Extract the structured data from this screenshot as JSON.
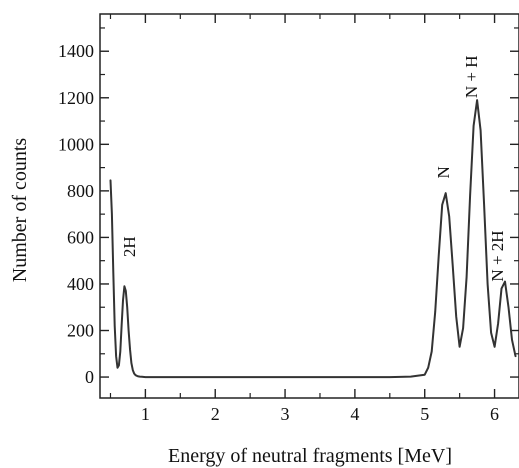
{
  "chart_data": {
    "type": "line",
    "title": "",
    "xlabel": "Energy of neutral fragments [MeV]",
    "ylabel": "Number of counts",
    "xlim": [
      0.35,
      6.35
    ],
    "ylim": [
      -90,
      1560
    ],
    "x_ticks": [
      1,
      2,
      3,
      4,
      5,
      6
    ],
    "x_tick_labels": [
      "1",
      "2",
      "3",
      "4",
      "5",
      "6"
    ],
    "y_ticks": [
      0,
      200,
      400,
      600,
      800,
      1000,
      1200,
      1400
    ],
    "y_tick_labels": [
      "0",
      "200",
      "400",
      "600",
      "800",
      "1000",
      "1200",
      "1400"
    ],
    "grid": false,
    "legend": "none",
    "line_color": "#333333",
    "series": [
      {
        "x": [
          0.5,
          0.52,
          0.54,
          0.56,
          0.58,
          0.6,
          0.62,
          0.64,
          0.66,
          0.68,
          0.7,
          0.72,
          0.74,
          0.76,
          0.78,
          0.8,
          0.82,
          0.84,
          0.86,
          0.88,
          0.9,
          0.92,
          0.95,
          1.0,
          1.1,
          1.2,
          1.3,
          1.5,
          1.8,
          2.0,
          2.5,
          3.0,
          3.5,
          4.0,
          4.5,
          4.8,
          5.0,
          5.05,
          5.1,
          5.15,
          5.2,
          5.25,
          5.3,
          5.35,
          5.4,
          5.45,
          5.5,
          5.55,
          5.6,
          5.65,
          5.7,
          5.75,
          5.8,
          5.85,
          5.9,
          5.95,
          6.0,
          6.05,
          6.1,
          6.15,
          6.2,
          6.25,
          6.3
        ],
        "y": [
          845,
          700,
          450,
          220,
          90,
          40,
          50,
          110,
          220,
          330,
          390,
          370,
          300,
          200,
          120,
          60,
          30,
          15,
          8,
          5,
          3,
          2,
          1,
          0,
          0,
          0,
          0,
          0,
          0,
          0,
          0,
          0,
          0,
          0,
          0,
          2,
          10,
          40,
          110,
          280,
          520,
          740,
          790,
          690,
          480,
          260,
          130,
          210,
          430,
          780,
          1080,
          1190,
          1060,
          740,
          400,
          190,
          130,
          230,
          380,
          410,
          300,
          160,
          90
        ]
      }
    ],
    "annotations": [
      {
        "text": "2H",
        "x": 0.85,
        "y": 560
      },
      {
        "text": "N",
        "x": 5.35,
        "y": 880
      },
      {
        "text": "N + H",
        "x": 5.75,
        "y": 1290
      },
      {
        "text": "N + 2H",
        "x": 6.12,
        "y": 520
      }
    ]
  }
}
